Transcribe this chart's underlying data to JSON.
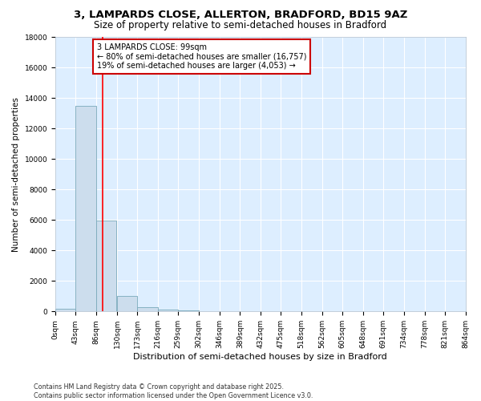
{
  "title": "3, LAMPARDS CLOSE, ALLERTON, BRADFORD, BD15 9AZ",
  "subtitle": "Size of property relative to semi-detached houses in Bradford",
  "xlabel": "Distribution of semi-detached houses by size in Bradford",
  "ylabel": "Number of semi-detached properties",
  "bin_edges": [
    0,
    43,
    86,
    130,
    173,
    216,
    259,
    302,
    346,
    389,
    432,
    475,
    518,
    562,
    605,
    648,
    691,
    734,
    778,
    821,
    864
  ],
  "bar_heights": [
    170,
    13500,
    5950,
    1000,
    300,
    130,
    50,
    20,
    10,
    5,
    3,
    2,
    1,
    1,
    1,
    1,
    0,
    0,
    0,
    0
  ],
  "bar_color": "#ccdded",
  "bar_edge_color": "#7aaabb",
  "red_line_x": 99,
  "annotation_title": "3 LAMPARDS CLOSE: 99sqm",
  "annotation_line1": "← 80% of semi-detached houses are smaller (16,757)",
  "annotation_line2": "19% of semi-detached houses are larger (4,053) →",
  "annotation_box_color": "#ffffff",
  "annotation_box_edge": "#cc0000",
  "ylim": [
    0,
    18000
  ],
  "xlim": [
    0,
    864
  ],
  "bg_color": "#ddeeff",
  "footer_line1": "Contains HM Land Registry data © Crown copyright and database right 2025.",
  "footer_line2": "Contains public sector information licensed under the Open Government Licence v3.0.",
  "title_fontsize": 9.5,
  "subtitle_fontsize": 8.5,
  "annotation_fontsize": 7,
  "tick_fontsize": 6.5,
  "ylabel_fontsize": 7.5,
  "xlabel_fontsize": 8,
  "footer_fontsize": 5.8
}
